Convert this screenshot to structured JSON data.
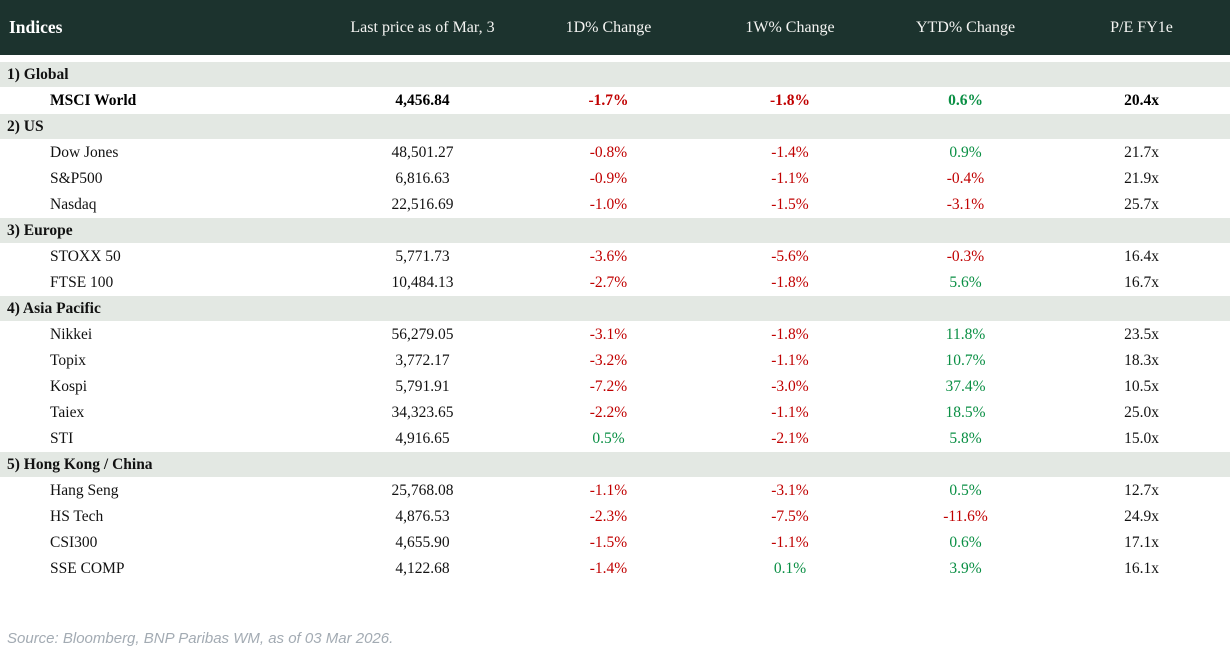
{
  "table": {
    "title": "Indices",
    "columns": [
      "Last price as of Mar, 3",
      "1D% Change",
      "1W% Change",
      "YTD% Change",
      "P/E FY1e"
    ],
    "sections": [
      {
        "label": "1) Global",
        "rows": [
          {
            "name": "MSCI World",
            "bold": true,
            "last_price": "4,456.84",
            "d1": "-1.7%",
            "w1": "-1.8%",
            "ytd": "0.6%",
            "pe": "20.4x"
          }
        ]
      },
      {
        "label": "2) US",
        "rows": [
          {
            "name": "Dow Jones",
            "bold": false,
            "last_price": "48,501.27",
            "d1": "-0.8%",
            "w1": "-1.4%",
            "ytd": "0.9%",
            "pe": "21.7x"
          },
          {
            "name": "S&P500",
            "bold": false,
            "last_price": "6,816.63",
            "d1": "-0.9%",
            "w1": "-1.1%",
            "ytd": "-0.4%",
            "pe": "21.9x"
          },
          {
            "name": "Nasdaq",
            "bold": false,
            "last_price": "22,516.69",
            "d1": "-1.0%",
            "w1": "-1.5%",
            "ytd": "-3.1%",
            "pe": "25.7x"
          }
        ]
      },
      {
        "label": "3) Europe",
        "rows": [
          {
            "name": "STOXX 50",
            "bold": false,
            "last_price": "5,771.73",
            "d1": "-3.6%",
            "w1": "-5.6%",
            "ytd": "-0.3%",
            "pe": "16.4x"
          },
          {
            "name": "FTSE 100",
            "bold": false,
            "last_price": "10,484.13",
            "d1": "-2.7%",
            "w1": "-1.8%",
            "ytd": "5.6%",
            "pe": "16.7x"
          }
        ]
      },
      {
        "label": "4) Asia Pacific",
        "rows": [
          {
            "name": "Nikkei",
            "bold": false,
            "last_price": "56,279.05",
            "d1": "-3.1%",
            "w1": "-1.8%",
            "ytd": "11.8%",
            "pe": "23.5x"
          },
          {
            "name": "Topix",
            "bold": false,
            "last_price": "3,772.17",
            "d1": "-3.2%",
            "w1": "-1.1%",
            "ytd": "10.7%",
            "pe": "18.3x"
          },
          {
            "name": "Kospi",
            "bold": false,
            "last_price": "5,791.91",
            "d1": "-7.2%",
            "w1": "-3.0%",
            "ytd": "37.4%",
            "pe": "10.5x"
          },
          {
            "name": "Taiex",
            "bold": false,
            "last_price": "34,323.65",
            "d1": "-2.2%",
            "w1": "-1.1%",
            "ytd": "18.5%",
            "pe": "25.0x"
          },
          {
            "name": "STI",
            "bold": false,
            "last_price": "4,916.65",
            "d1": "0.5%",
            "w1": "-2.1%",
            "ytd": "5.8%",
            "pe": "15.0x"
          }
        ]
      },
      {
        "label": "5) Hong Kong / China",
        "rows": [
          {
            "name": "Hang Seng",
            "bold": false,
            "last_price": "25,768.08",
            "d1": "-1.1%",
            "w1": "-3.1%",
            "ytd": "0.5%",
            "pe": "12.7x"
          },
          {
            "name": "HS Tech",
            "bold": false,
            "last_price": "4,876.53",
            "d1": "-2.3%",
            "w1": "-7.5%",
            "ytd": "-11.6%",
            "pe": "24.9x"
          },
          {
            "name": "CSI300",
            "bold": false,
            "last_price": "4,655.90",
            "d1": "-1.5%",
            "w1": "-1.1%",
            "ytd": "0.6%",
            "pe": "17.1x"
          },
          {
            "name": "SSE COMP",
            "bold": false,
            "last_price": "4,122.68",
            "d1": "-1.4%",
            "w1": "0.1%",
            "ytd": "3.9%",
            "pe": "16.1x"
          }
        ]
      }
    ]
  },
  "colors": {
    "header_bg": "#1c332e",
    "section_bg": "#e3e8e3",
    "negative": "#c00000",
    "positive": "#0a8f44",
    "text": "#121212"
  },
  "footer": {
    "source": "Source: Bloomberg, BNP Paribas WM, as of 03 Mar 2026."
  }
}
